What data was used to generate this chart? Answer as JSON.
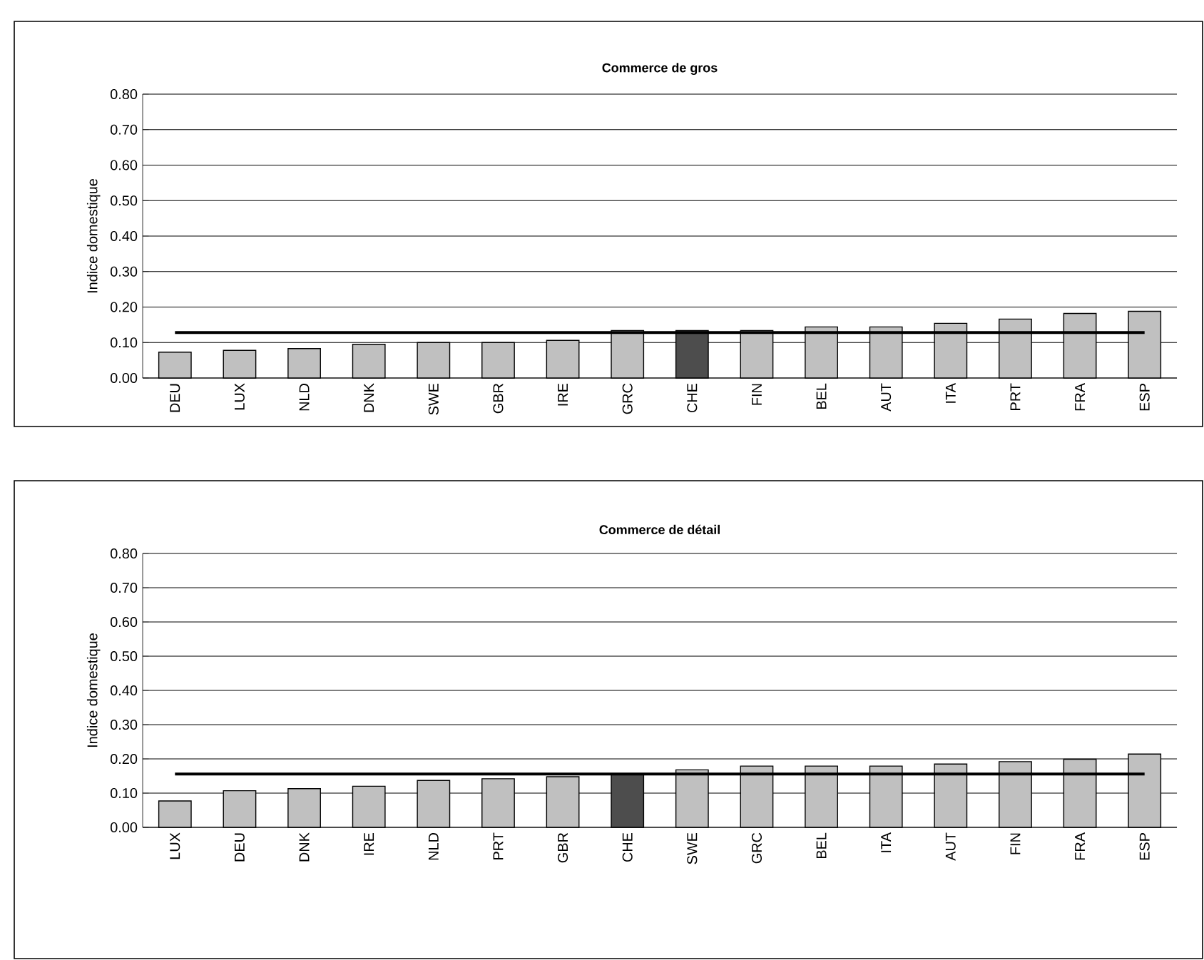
{
  "chart_data": [
    {
      "type": "bar",
      "title": "Commerce de gros",
      "ylabel": "Indice domestique",
      "categories": [
        "DEU",
        "LUX",
        "NLD",
        "DNK",
        "SWE",
        "GBR",
        "IRE",
        "GRC",
        "CHE",
        "FIN",
        "BEL",
        "AUT",
        "ITA",
        "PRT",
        "FRA",
        "ESP"
      ],
      "values": [
        0.073,
        0.078,
        0.083,
        0.095,
        0.1,
        0.1,
        0.106,
        0.134,
        0.134,
        0.134,
        0.144,
        0.144,
        0.154,
        0.166,
        0.182,
        0.188
      ],
      "colors": [
        "#c0c0c0",
        "#c0c0c0",
        "#c0c0c0",
        "#c0c0c0",
        "#c0c0c0",
        "#c0c0c0",
        "#c0c0c0",
        "#c0c0c0",
        "#4d4d4d",
        "#c0c0c0",
        "#c0c0c0",
        "#c0c0c0",
        "#c0c0c0",
        "#c0c0c0",
        "#c0c0c0",
        "#c0c0c0"
      ],
      "ylim": [
        0,
        0.8
      ],
      "yticks": [
        {
          "value": 0,
          "label": "0.00"
        },
        {
          "value": 0.1,
          "label": "0.10"
        },
        {
          "value": 0.2,
          "label": "0.20"
        },
        {
          "value": 0.3,
          "label": "0.30"
        },
        {
          "value": 0.4,
          "label": "0.40"
        },
        {
          "value": 0.5,
          "label": "0.50"
        },
        {
          "value": 0.6,
          "label": "0.60"
        },
        {
          "value": 0.7,
          "label": "0.70"
        },
        {
          "value": 0.8,
          "label": "0.80"
        }
      ],
      "grid": "y",
      "ref_lines": [
        {
          "axis": "y",
          "value": 0.128,
          "color": "#000000"
        }
      ]
    },
    {
      "type": "bar",
      "title": "Commerce de détail",
      "ylabel": "Indice domestique",
      "categories": [
        "LUX",
        "DEU",
        "DNK",
        "IRE",
        "NLD",
        "PRT",
        "GBR",
        "CHE",
        "SWE",
        "GRC",
        "BEL",
        "ITA",
        "AUT",
        "FIN",
        "FRA",
        "ESP"
      ],
      "values": [
        0.077,
        0.107,
        0.113,
        0.12,
        0.137,
        0.142,
        0.148,
        0.155,
        0.168,
        0.179,
        0.179,
        0.179,
        0.185,
        0.192,
        0.199,
        0.214
      ],
      "colors": [
        "#c0c0c0",
        "#c0c0c0",
        "#c0c0c0",
        "#c0c0c0",
        "#c0c0c0",
        "#c0c0c0",
        "#c0c0c0",
        "#4d4d4d",
        "#c0c0c0",
        "#c0c0c0",
        "#c0c0c0",
        "#c0c0c0",
        "#c0c0c0",
        "#c0c0c0",
        "#c0c0c0",
        "#c0c0c0"
      ],
      "ylim": [
        0,
        0.8
      ],
      "yticks": [
        {
          "value": 0,
          "label": "0.00"
        },
        {
          "value": 0.1,
          "label": "0.10"
        },
        {
          "value": 0.2,
          "label": "0.20"
        },
        {
          "value": 0.3,
          "label": "0.30"
        },
        {
          "value": 0.4,
          "label": "0.40"
        },
        {
          "value": 0.5,
          "label": "0.50"
        },
        {
          "value": 0.6,
          "label": "0.60"
        },
        {
          "value": 0.7,
          "label": "0.70"
        },
        {
          "value": 0.8,
          "label": "0.80"
        }
      ],
      "grid": "y",
      "ref_lines": [
        {
          "axis": "y",
          "value": 0.156,
          "color": "#000000"
        }
      ]
    }
  ]
}
